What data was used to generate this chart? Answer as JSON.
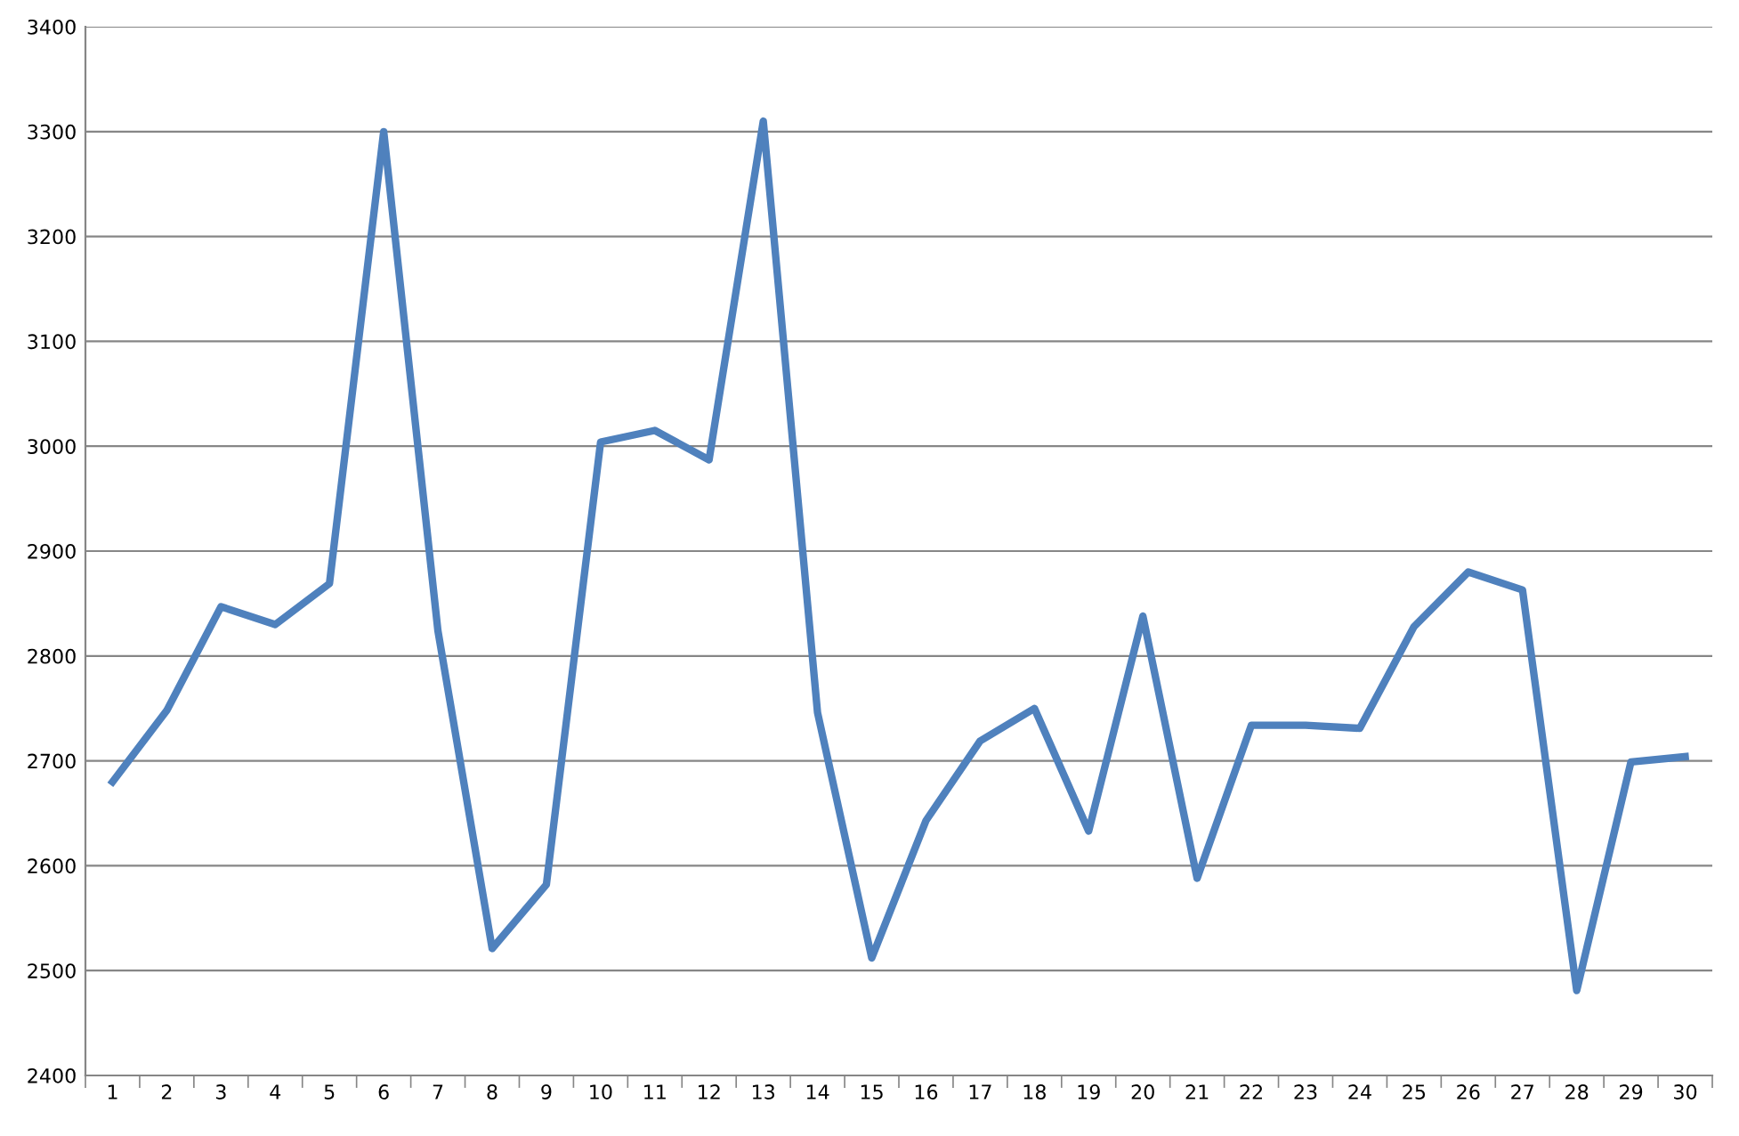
{
  "chart_data": {
    "type": "line",
    "categories": [
      "1",
      "2",
      "3",
      "4",
      "5",
      "6",
      "7",
      "8",
      "9",
      "10",
      "11",
      "12",
      "13",
      "14",
      "15",
      "16",
      "17",
      "18",
      "19",
      "20",
      "21",
      "22",
      "23",
      "24",
      "25",
      "26",
      "27",
      "28",
      "29",
      "30"
    ],
    "series": [
      {
        "color": "#4f81bd",
        "values": [
          2680,
          2748,
          2847,
          2830,
          2869,
          3300,
          2824,
          2521,
          2582,
          3004,
          3015,
          2987,
          3310,
          2746,
          2512,
          2643,
          2719,
          2750,
          2633,
          2838,
          2588,
          2734,
          2734,
          2731,
          2828,
          2880,
          2863,
          2481,
          2699,
          2704
        ]
      }
    ],
    "ylim": [
      2400,
      3400
    ],
    "yticks": [
      2400,
      2500,
      2600,
      2700,
      2800,
      2900,
      3000,
      3100,
      3200,
      3300,
      3400
    ],
    "grid": "y",
    "legend": false,
    "marker": "none",
    "line_style": "solid"
  }
}
